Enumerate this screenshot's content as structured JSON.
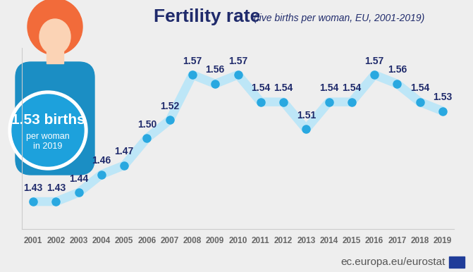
{
  "chart_data": {
    "type": "line",
    "title": "Fertility rate",
    "subtitle": "(live births per woman, EU, 2001-2019)",
    "callout": [
      "1.53 births",
      "per woman",
      "in 2019"
    ],
    "source": "ec.europa.eu/eurostat",
    "categories": [
      "2001",
      "2002",
      "2003",
      "2004",
      "2005",
      "2006",
      "2007",
      "2008",
      "2009",
      "2010",
      "2011",
      "2012",
      "2013",
      "2014",
      "2015",
      "2016",
      "2017",
      "2018",
      "2019"
    ],
    "values": [
      1.43,
      1.43,
      1.44,
      1.46,
      1.47,
      1.5,
      1.52,
      1.57,
      1.56,
      1.57,
      1.54,
      1.54,
      1.51,
      1.54,
      1.54,
      1.57,
      1.56,
      1.54,
      1.53
    ],
    "value_labels": [
      "1.43",
      "1.43",
      "1.44",
      "1.46",
      "1.47",
      "1.50",
      "1.52",
      "1.57",
      "1.56",
      "1.57",
      "1.54",
      "1.54",
      "1.51",
      "1.54",
      "1.54",
      "1.57",
      "1.56",
      "1.54",
      "1.53"
    ],
    "color": "#29a8e0",
    "marker": "o",
    "data_labels": true,
    "tick_labels": "x",
    "grid": false,
    "ylim": [
      1.4,
      1.6
    ],
    "yticks": []
  }
}
